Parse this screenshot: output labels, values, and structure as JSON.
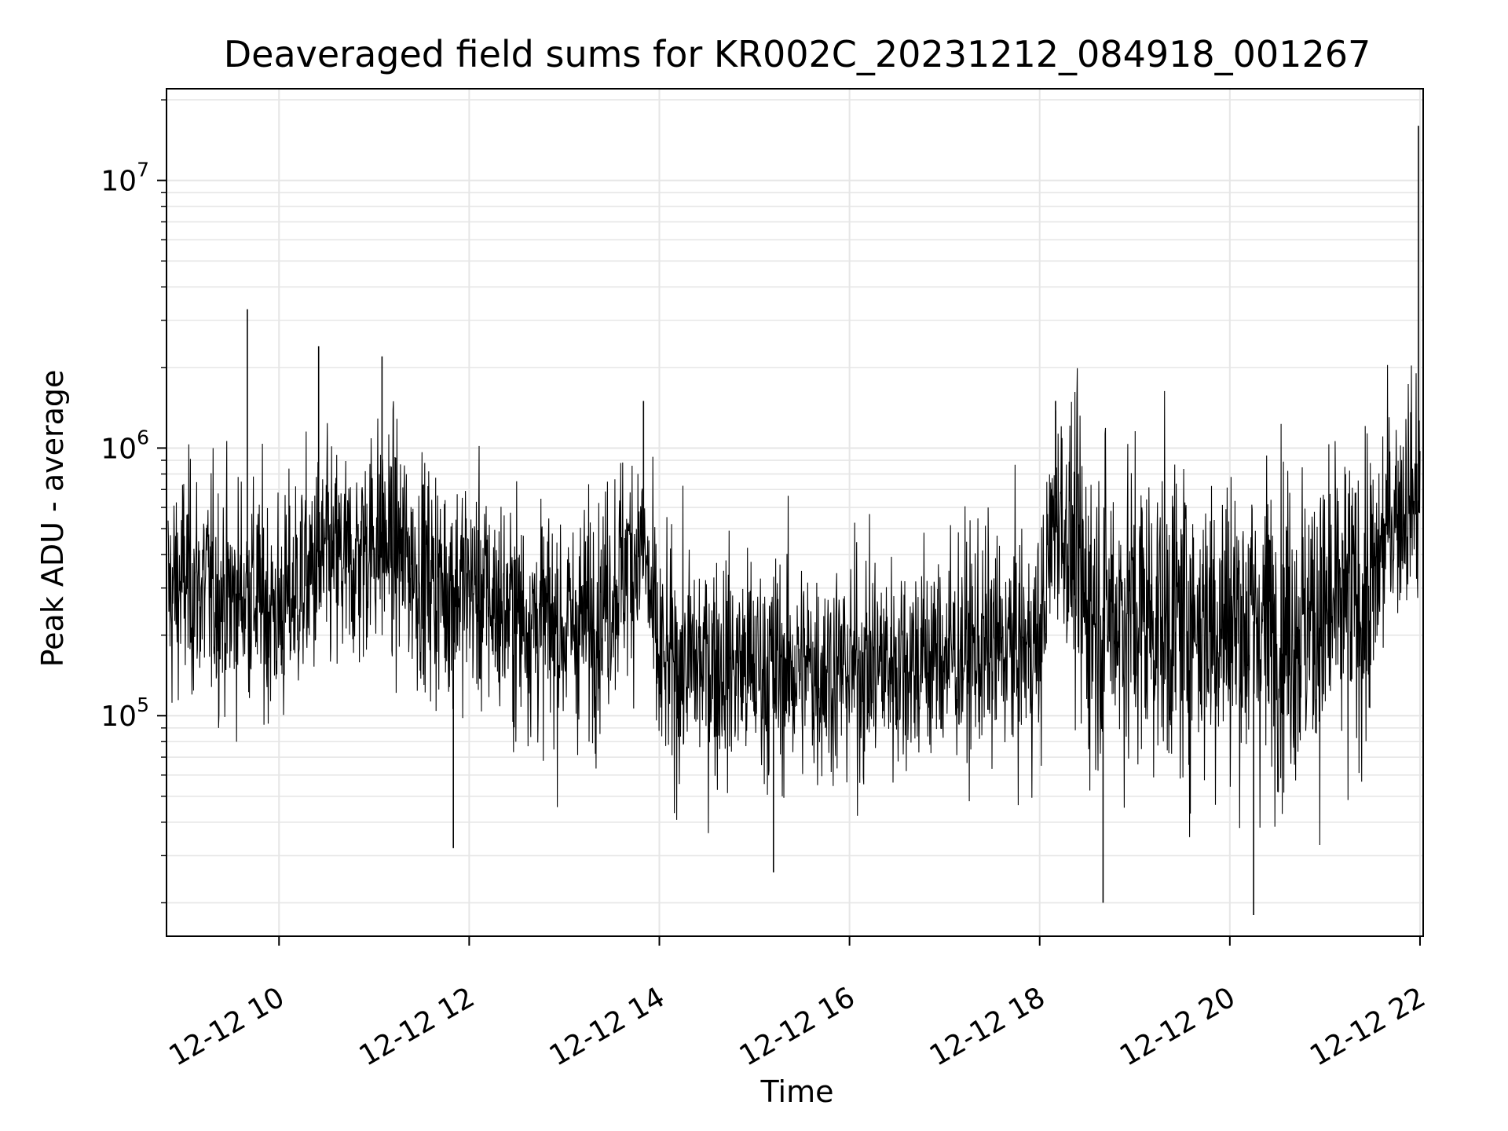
{
  "chart_data": {
    "type": "line",
    "title": "Deaveraged field sums for KR002C_20231212_084918_001267",
    "xlabel": "Time",
    "ylabel": "Peak ADU - average",
    "y_scale": "log",
    "grid": true,
    "line_color": "#000000",
    "grid_color": "#e6e6e6",
    "xlim": [
      "2023-12-12 08:49",
      "2023-12-12 22:02"
    ],
    "ylim": [
      15000,
      22000000
    ],
    "x_ticks": [
      {
        "value": "2023-12-12 10:00",
        "label": "12-12 10"
      },
      {
        "value": "2023-12-12 12:00",
        "label": "12-12 12"
      },
      {
        "value": "2023-12-12 14:00",
        "label": "12-12 14"
      },
      {
        "value": "2023-12-12 16:00",
        "label": "12-12 16"
      },
      {
        "value": "2023-12-12 18:00",
        "label": "12-12 18"
      },
      {
        "value": "2023-12-12 20:00",
        "label": "12-12 20"
      },
      {
        "value": "2023-12-12 22:00",
        "label": "12-12 22"
      }
    ],
    "y_ticks": [
      {
        "value": 100000,
        "base": "10",
        "exp": "5"
      },
      {
        "value": 1000000,
        "base": "10",
        "exp": "6"
      },
      {
        "value": 10000000,
        "base": "10",
        "exp": "7"
      }
    ],
    "series": [
      {
        "x": [
          "2023-12-12 08:50",
          "2023-12-12 09:00",
          "2023-12-12 09:15",
          "2023-12-12 09:30",
          "2023-12-12 09:40",
          "2023-12-12 10:00",
          "2023-12-12 10:15",
          "2023-12-12 10:30",
          "2023-12-12 10:45",
          "2023-12-12 11:00",
          "2023-12-12 11:15",
          "2023-12-12 11:30",
          "2023-12-12 11:45",
          "2023-12-12 12:00",
          "2023-12-12 12:20",
          "2023-12-12 12:40",
          "2023-12-12 13:00",
          "2023-12-12 13:20",
          "2023-12-12 13:40",
          "2023-12-12 13:50",
          "2023-12-12 14:00",
          "2023-12-12 14:30",
          "2023-12-12 15:00",
          "2023-12-12 15:30",
          "2023-12-12 16:00",
          "2023-12-12 16:30",
          "2023-12-12 17:00",
          "2023-12-12 17:30",
          "2023-12-12 18:00",
          "2023-12-12 18:10",
          "2023-12-12 18:30",
          "2023-12-12 19:00",
          "2023-12-12 19:30",
          "2023-12-12 20:00",
          "2023-12-12 20:30",
          "2023-12-12 21:00",
          "2023-12-12 21:30",
          "2023-12-12 21:40",
          "2023-12-12 21:55",
          "2023-12-12 22:00"
        ],
        "y": [
          280000,
          320000,
          300000,
          270000,
          300000,
          240000,
          320000,
          380000,
          360000,
          470000,
          420000,
          340000,
          300000,
          310000,
          250000,
          230000,
          210000,
          240000,
          380000,
          420000,
          150000,
          160000,
          150000,
          150000,
          150000,
          160000,
          170000,
          180000,
          180000,
          650000,
          260000,
          240000,
          230000,
          230000,
          220000,
          230000,
          280000,
          550000,
          680000,
          620000
        ]
      }
    ],
    "annotations": [
      {
        "x": "2023-12-12 09:40",
        "y": 3300000
      },
      {
        "x": "2023-12-12 10:25",
        "y": 2400000
      },
      {
        "x": "2023-12-12 11:05",
        "y": 2200000
      },
      {
        "x": "2023-12-12 11:50",
        "y": 32000
      },
      {
        "x": "2023-12-12 13:50",
        "y": 1500000
      },
      {
        "x": "2023-12-12 15:12",
        "y": 26000
      },
      {
        "x": "2023-12-12 18:10",
        "y": 1500000
      },
      {
        "x": "2023-12-12 18:40",
        "y": 20000
      },
      {
        "x": "2023-12-12 20:15",
        "y": 18000
      },
      {
        "x": "2023-12-12 21:59",
        "y": 16000000
      }
    ]
  }
}
